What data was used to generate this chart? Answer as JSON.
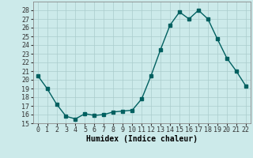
{
  "x": [
    0,
    1,
    2,
    3,
    4,
    5,
    6,
    7,
    8,
    9,
    10,
    11,
    12,
    13,
    14,
    15,
    16,
    17,
    18,
    19,
    20,
    21,
    22
  ],
  "y": [
    20.5,
    19.0,
    17.2,
    15.8,
    15.5,
    16.1,
    15.9,
    16.0,
    16.3,
    16.4,
    16.5,
    17.8,
    20.5,
    23.5,
    26.3,
    27.8,
    27.0,
    28.0,
    27.0,
    24.7,
    22.5,
    21.0,
    19.3
  ],
  "line_color": "#006060",
  "marker": "s",
  "markersize": 2.5,
  "linewidth": 1.0,
  "bg_color": "#cceaea",
  "grid_color": "#aacccc",
  "xlabel": "Humidex (Indice chaleur)",
  "xlim": [
    -0.5,
    22.5
  ],
  "ylim": [
    15,
    29
  ],
  "yticks": [
    15,
    16,
    17,
    18,
    19,
    20,
    21,
    22,
    23,
    24,
    25,
    26,
    27,
    28
  ],
  "xticks": [
    0,
    1,
    2,
    3,
    4,
    5,
    6,
    7,
    8,
    9,
    10,
    11,
    12,
    13,
    14,
    15,
    16,
    17,
    18,
    19,
    20,
    21,
    22
  ],
  "xlabel_fontsize": 7,
  "tick_fontsize": 6,
  "xlabel_fontweight": "bold"
}
